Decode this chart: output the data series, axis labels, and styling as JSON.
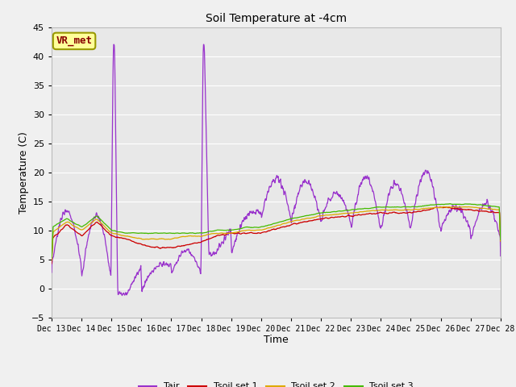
{
  "title": "Soil Temperature at -4cm",
  "xlabel": "Time",
  "ylabel": "Temperature (C)",
  "ylim": [
    -5,
    45
  ],
  "xlim": [
    0,
    360
  ],
  "x_tick_labels": [
    "Dec 13",
    "Dec 14",
    "Dec 15",
    "Dec 16",
    "Dec 17",
    "Dec 18",
    "Dec 19",
    "Dec 20",
    "Dec 21",
    "Dec 22",
    "Dec 23",
    "Dec 24",
    "Dec 25",
    "Dec 26",
    "Dec 27",
    "Dec 28"
  ],
  "x_tick_positions": [
    0,
    24,
    48,
    72,
    96,
    120,
    144,
    168,
    192,
    216,
    240,
    264,
    288,
    312,
    336,
    360
  ],
  "yticks": [
    -5,
    0,
    5,
    10,
    15,
    20,
    25,
    30,
    35,
    40,
    45
  ],
  "plot_bg_color": "#e8e8e8",
  "fig_bg_color": "#f0f0f0",
  "grid_color": "#ffffff",
  "line_colors": {
    "Tair": "#9933cc",
    "Tsoil1": "#cc0000",
    "Tsoil2": "#ddaa00",
    "Tsoil3": "#44bb00"
  },
  "legend_labels": [
    "Tair",
    "Tsoil set 1",
    "Tsoil set 2",
    "Tsoil set 3"
  ],
  "annotation_text": "VR_met",
  "annotation_box_color": "#ffff99",
  "annotation_border_color": "#999900"
}
